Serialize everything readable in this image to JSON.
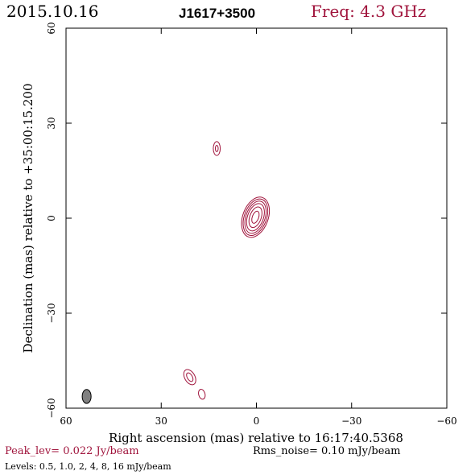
{
  "header": {
    "date": "2015.10.16",
    "source": "J1617+3500",
    "freq": "Freq: 4.3 GHz"
  },
  "footer": {
    "peak": "Peak_lev=  0.022 Jy/beam",
    "rms": "Rms_noise= 0.10 mJy/beam",
    "levels": "Levels: 0.5, 1.0,   2,   4,   8,  16 mJy/beam"
  },
  "colors": {
    "contour": "#a0143c",
    "beam": "#808080"
  },
  "chart_data": {
    "type": "contour",
    "xlabel": "Right ascension (mas) relative to 16:17:40.5368",
    "ylabel": "Declination (mas) relative to +35:00:15.200",
    "xlim": [
      60,
      -60
    ],
    "ylim": [
      -60,
      60
    ],
    "xticks": [
      60,
      30,
      0,
      -30,
      -60
    ],
    "yticks": [
      60,
      30,
      0,
      -30,
      -60
    ],
    "xtick_labels": [
      "60",
      "30",
      "0",
      "−30",
      "−60"
    ],
    "ytick_labels": [
      "60",
      "30",
      "0",
      "−30",
      "−60"
    ],
    "levels_mJy": [
      0.5,
      1.0,
      2,
      4,
      8,
      16
    ],
    "components": [
      {
        "ra": 0.3,
        "dec": 0.3,
        "contours": [
          {
            "a": 4.0,
            "b": 6.6,
            "angle": 20
          },
          {
            "a": 3.5,
            "b": 6.0,
            "angle": 20
          },
          {
            "a": 3.0,
            "b": 5.3,
            "angle": 20
          },
          {
            "a": 2.5,
            "b": 4.5,
            "angle": 20
          },
          {
            "a": 1.8,
            "b": 3.4,
            "angle": 20
          },
          {
            "a": 1.0,
            "b": 2.0,
            "angle": 20
          }
        ]
      },
      {
        "ra": 12.5,
        "dec": 22,
        "contours": [
          {
            "a": 1.1,
            "b": 2.2,
            "angle": 0
          },
          {
            "a": 0.45,
            "b": 1.0,
            "angle": 0
          }
        ]
      },
      {
        "ra": 21,
        "dec": -50.2,
        "contours": [
          {
            "a": 1.6,
            "b": 2.6,
            "angle": -30
          },
          {
            "a": 0.8,
            "b": 1.5,
            "angle": -30
          }
        ]
      },
      {
        "ra": 17.2,
        "dec": -55.6,
        "contours": [
          {
            "a": 1.0,
            "b": 1.6,
            "angle": -15
          }
        ]
      }
    ],
    "beam": {
      "ra": 53.5,
      "dec": -56.3,
      "a": 1.4,
      "b": 2.2,
      "angle": 0
    }
  }
}
